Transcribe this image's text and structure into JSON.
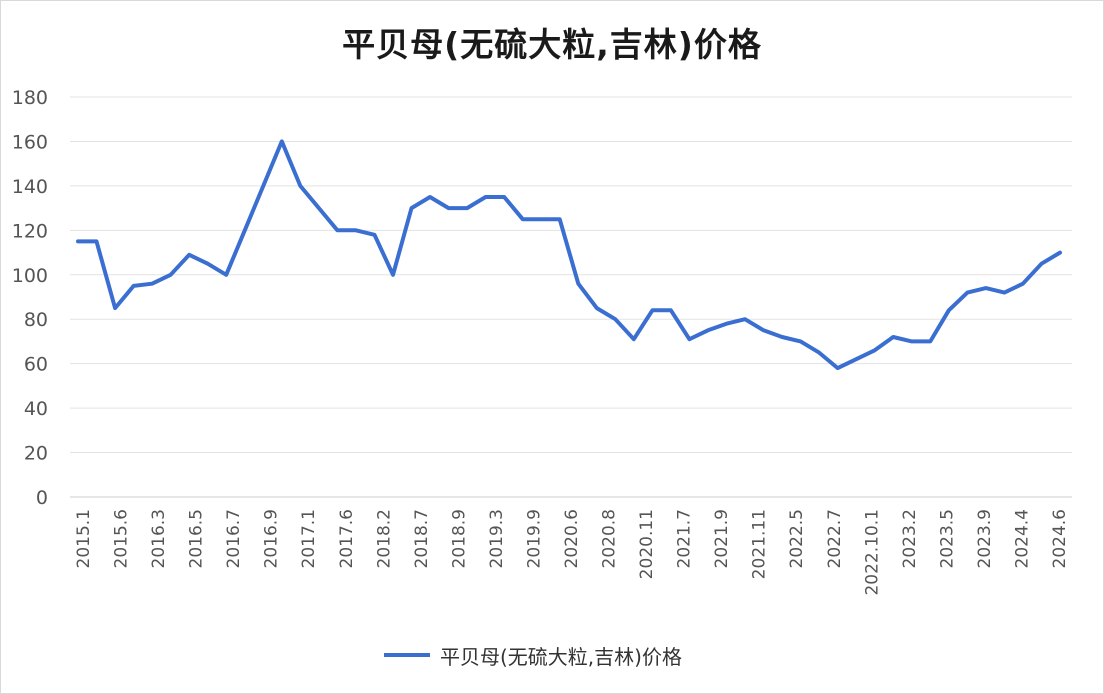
{
  "chart_data": {
    "type": "line",
    "title": "平贝母(无硫大粒,吉林)价格",
    "xlabel": "",
    "ylabel": "",
    "ylim": [
      0,
      180
    ],
    "y_ticks": [
      0,
      20,
      40,
      60,
      80,
      100,
      120,
      140,
      160,
      180
    ],
    "grid": true,
    "legend_position": "bottom-center",
    "x_tick_labels": [
      "2015.1",
      "2015.6",
      "2016.3",
      "2016.5",
      "2016.7",
      "2016.9",
      "2017.1",
      "2017.6",
      "2018.2",
      "2018.7",
      "2018.9",
      "2019.3",
      "2019.9",
      "2020.6",
      "2020.8",
      "2020.11",
      "2021.7",
      "2021.9",
      "2021.11",
      "2022.5",
      "2022.7",
      "2022.10.1",
      "2023.2",
      "2023.5",
      "2023.9",
      "2024.4",
      "2024.6"
    ],
    "series": [
      {
        "name": "平贝母(无硫大粒,吉林)价格",
        "color": "#3a6fd1",
        "values": [
          115,
          115,
          85,
          95,
          96,
          100,
          109,
          105,
          100,
          120,
          140,
          160,
          140,
          130,
          120,
          120,
          118,
          100,
          130,
          135,
          130,
          130,
          135,
          135,
          125,
          125,
          125,
          96,
          85,
          80,
          71,
          84,
          84,
          71,
          75,
          78,
          80,
          75,
          72,
          70,
          65,
          58,
          62,
          66,
          72,
          70,
          70,
          84,
          92,
          94,
          92,
          96,
          105,
          110
        ]
      }
    ]
  }
}
